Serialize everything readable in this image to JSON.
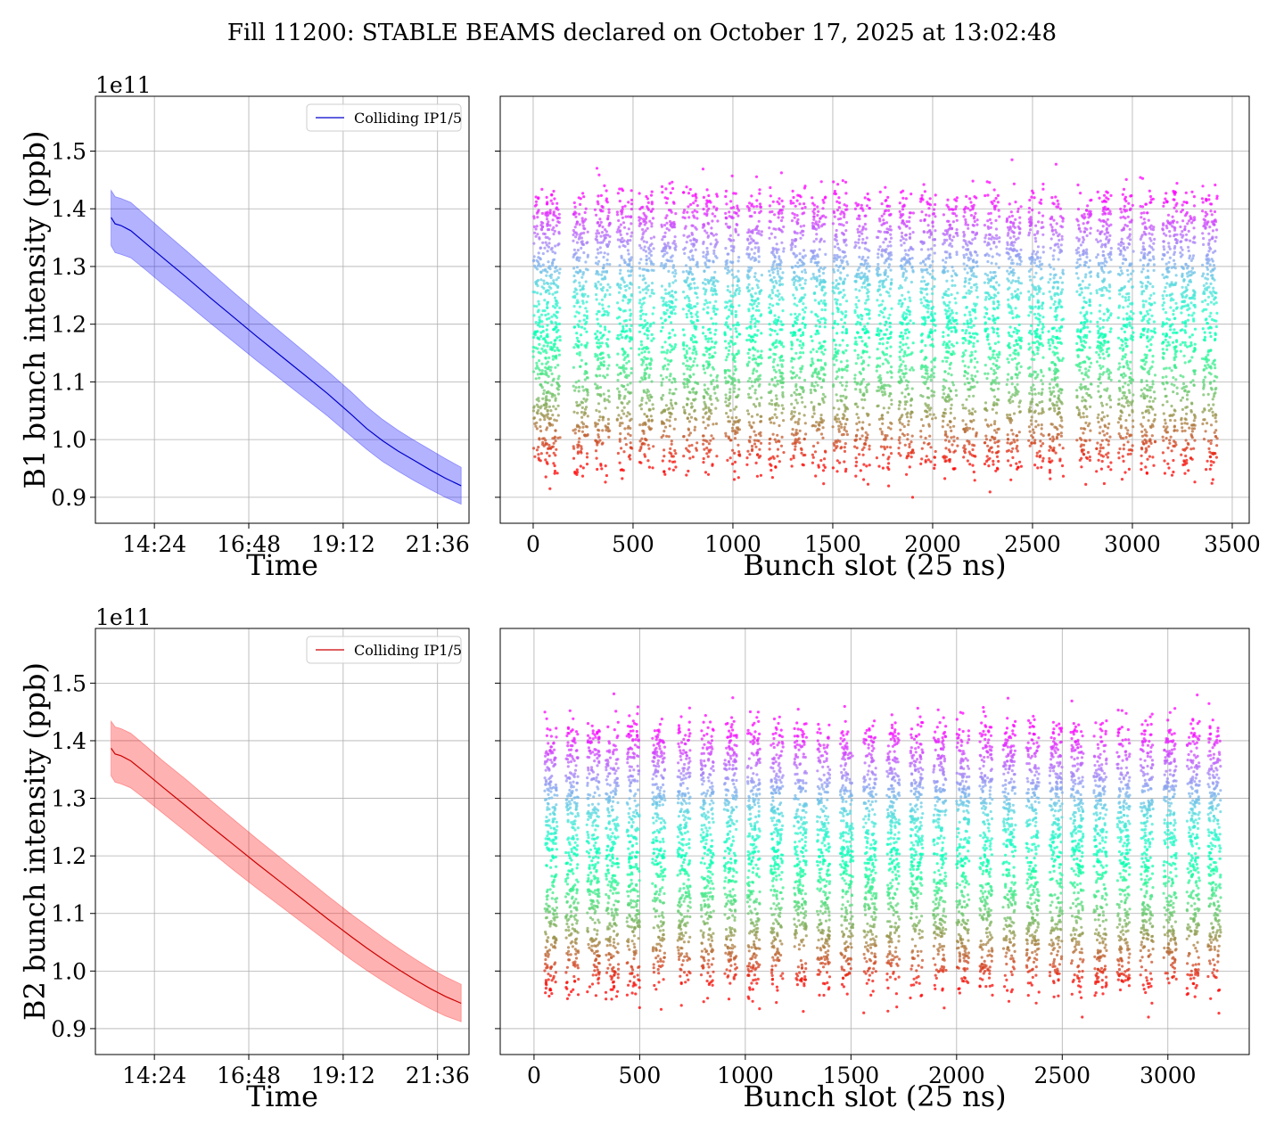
{
  "figure": {
    "suptitle": "Fill 11200: STABLE BEAMS declared on October 17, 2025 at 13:02:48"
  },
  "chart_data": [
    {
      "id": "b1-time",
      "type": "line",
      "title": "",
      "xlabel": "Time",
      "ylabel": "B1 bunch intensity (ppb)",
      "y_offset_label": "1e11",
      "x_unit": "hours (clock time)",
      "xlim": [
        12.9,
        22.4
      ],
      "ylim": [
        0.855,
        1.595
      ],
      "x_ticks": [
        14.4,
        16.8,
        19.2,
        21.6
      ],
      "x_tick_labels": [
        "14:24",
        "16:48",
        "19:12",
        "21:36"
      ],
      "y_ticks": [
        0.9,
        1.0,
        1.1,
        1.2,
        1.3,
        1.4,
        1.5
      ],
      "y_tick_labels": [
        "0.9",
        "1.0",
        "1.1",
        "1.2",
        "1.3",
        "1.4",
        "1.5"
      ],
      "grid": true,
      "legend": "top-right",
      "series": [
        {
          "name": "Colliding IP1/5",
          "color": "#0000cc",
          "band_color": "#0000ff",
          "x": [
            13.3,
            13.4,
            13.55,
            13.8,
            14.2,
            14.6,
            15.2,
            15.8,
            16.4,
            17.0,
            17.6,
            18.2,
            18.8,
            19.4,
            19.8,
            20.2,
            20.6,
            21.0,
            21.4,
            21.8,
            22.2
          ],
          "values": [
            1.385,
            1.374,
            1.371,
            1.362,
            1.339,
            1.316,
            1.282,
            1.247,
            1.213,
            1.179,
            1.146,
            1.113,
            1.08,
            1.044,
            1.019,
            0.998,
            0.98,
            0.964,
            0.948,
            0.933,
            0.92
          ],
          "lower": [
            1.336,
            1.324,
            1.321,
            1.315,
            1.293,
            1.27,
            1.237,
            1.203,
            1.17,
            1.137,
            1.105,
            1.073,
            1.041,
            1.006,
            0.983,
            0.962,
            0.945,
            0.929,
            0.914,
            0.9,
            0.888
          ],
          "upper": [
            1.432,
            1.421,
            1.418,
            1.411,
            1.387,
            1.363,
            1.328,
            1.292,
            1.256,
            1.221,
            1.187,
            1.153,
            1.119,
            1.083,
            1.057,
            1.035,
            1.016,
            0.999,
            0.983,
            0.967,
            0.952
          ]
        }
      ]
    },
    {
      "id": "b1-slot",
      "type": "scatter",
      "title": "",
      "xlabel": "Bunch slot (25 ns)",
      "ylabel": "",
      "xlim": [
        -165,
        3585
      ],
      "ylim": [
        0.855,
        1.595
      ],
      "x_ticks": [
        0,
        500,
        1000,
        1500,
        2000,
        2500,
        3000,
        3500
      ],
      "x_tick_labels": [
        "0",
        "500",
        "1000",
        "1500",
        "2000",
        "2500",
        "3000",
        "3500"
      ],
      "y_ticks": [
        0.9,
        1.0,
        1.1,
        1.2,
        1.3,
        1.4,
        1.5
      ],
      "grid": true,
      "colormap": "rainbow (red = low, violet = high)",
      "approx_points": 7600,
      "trains_start_slot": [
        0,
        60,
        200,
        310,
        420,
        530,
        640,
        750,
        850,
        960,
        1070,
        1180,
        1290,
        1390,
        1500,
        1610,
        1720,
        1830,
        1940,
        2050,
        2150,
        2260,
        2370,
        2480,
        2580,
        2720,
        2820,
        2930,
        3040,
        3150,
        3240,
        3350
      ],
      "train_length_slots": 75,
      "value_range_typical": [
        0.95,
        1.42
      ],
      "value_range_extreme": [
        0.9,
        1.55
      ]
    },
    {
      "id": "b2-time",
      "type": "line",
      "title": "",
      "xlabel": "Time",
      "ylabel": "B2 bunch intensity (ppb)",
      "y_offset_label": "1e11",
      "x_unit": "hours (clock time)",
      "xlim": [
        12.9,
        22.4
      ],
      "ylim": [
        0.855,
        1.595
      ],
      "x_ticks": [
        14.4,
        16.8,
        19.2,
        21.6
      ],
      "x_tick_labels": [
        "14:24",
        "16:48",
        "19:12",
        "21:36"
      ],
      "y_ticks": [
        0.9,
        1.0,
        1.1,
        1.2,
        1.3,
        1.4,
        1.5
      ],
      "y_tick_labels": [
        "0.9",
        "1.0",
        "1.1",
        "1.2",
        "1.3",
        "1.4",
        "1.5"
      ],
      "grid": true,
      "legend": "top-right",
      "series": [
        {
          "name": "Colliding IP1/5",
          "color": "#cc0000",
          "band_color": "#ff0000",
          "x": [
            13.3,
            13.4,
            13.55,
            13.8,
            14.2,
            14.6,
            15.2,
            15.8,
            16.4,
            17.0,
            17.6,
            18.2,
            18.8,
            19.4,
            19.8,
            20.2,
            20.6,
            21.0,
            21.4,
            21.8,
            22.2
          ],
          "values": [
            1.387,
            1.377,
            1.374,
            1.365,
            1.343,
            1.32,
            1.287,
            1.253,
            1.22,
            1.187,
            1.155,
            1.123,
            1.091,
            1.06,
            1.04,
            1.021,
            1.003,
            0.986,
            0.97,
            0.956,
            0.944
          ],
          "lower": [
            1.339,
            1.328,
            1.325,
            1.318,
            1.297,
            1.275,
            1.242,
            1.209,
            1.176,
            1.144,
            1.113,
            1.082,
            1.051,
            1.02,
            1.001,
            0.983,
            0.966,
            0.95,
            0.935,
            0.922,
            0.912
          ],
          "upper": [
            1.434,
            1.424,
            1.421,
            1.413,
            1.39,
            1.366,
            1.333,
            1.298,
            1.264,
            1.23,
            1.197,
            1.164,
            1.131,
            1.099,
            1.079,
            1.059,
            1.04,
            1.022,
            1.005,
            0.99,
            0.977
          ]
        }
      ]
    },
    {
      "id": "b2-slot",
      "type": "scatter",
      "title": "",
      "xlabel": "Bunch slot (25 ns)",
      "ylabel": "",
      "xlim": [
        -160,
        3385
      ],
      "ylim": [
        0.855,
        1.595
      ],
      "x_ticks": [
        0,
        500,
        1000,
        1500,
        2000,
        2500,
        3000
      ],
      "x_tick_labels": [
        "0",
        "500",
        "1000",
        "1500",
        "2000",
        "2500",
        "3000"
      ],
      "y_ticks": [
        0.9,
        1.0,
        1.1,
        1.2,
        1.3,
        1.4,
        1.5
      ],
      "grid": true,
      "colormap": "rainbow (red = low, violet = high)",
      "approx_points": 7600,
      "trains_start_slot": [
        50,
        150,
        250,
        340,
        440,
        560,
        680,
        790,
        900,
        1010,
        1120,
        1230,
        1340,
        1450,
        1560,
        1670,
        1780,
        1890,
        2000,
        2110,
        2220,
        2330,
        2440,
        2540,
        2650,
        2760,
        2870,
        2980,
        3090,
        3190
      ],
      "train_length_slots": 60,
      "value_range_typical": [
        0.97,
        1.42
      ],
      "value_range_extreme": [
        0.92,
        1.56
      ]
    }
  ]
}
